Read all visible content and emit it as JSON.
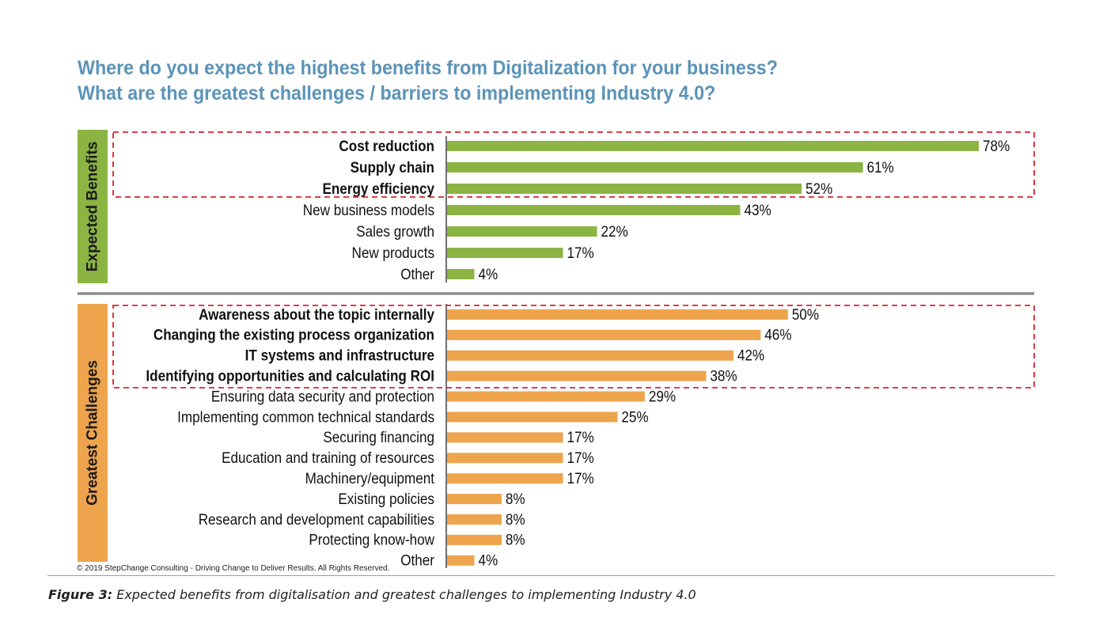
{
  "header": {
    "title_line1": "Where do you expect the highest benefits from Digitalization for your business?",
    "title_line2": "What are the greatest challenges / barriers to implementing Industry 4.0?"
  },
  "footer": {
    "copyright": "© 2019 StepChange Consulting - Driving Change to Deliver Results. All Rights Reserved.",
    "caption_label": "Figure 3:",
    "caption_text": "Expected benefits from digitalisation and greatest challenges to implementing Industry 4.0"
  },
  "colors": {
    "benefits": "#8bb443",
    "challenges": "#eda44c",
    "highlight_box": "#d9232e",
    "title": "#5b93b8",
    "divider": "#8c8c8c"
  },
  "chart_data": [
    {
      "type": "bar",
      "orientation": "horizontal",
      "group_label": "Expected Benefits",
      "categories": [
        "Cost reduction",
        "Supply chain",
        "Energy efficiency",
        "New business models",
        "Sales growth",
        "New products",
        "Other"
      ],
      "values": [
        78,
        61,
        52,
        43,
        22,
        17,
        4
      ],
      "value_labels": [
        "78%",
        "61%",
        "52%",
        "43%",
        "22%",
        "17%",
        "4%"
      ],
      "highlighted": [
        0,
        1,
        2
      ],
      "unit": "%",
      "xlim": [
        0,
        80
      ]
    },
    {
      "type": "bar",
      "orientation": "horizontal",
      "group_label": "Greatest Challenges",
      "categories": [
        "Awareness about the topic internally",
        "Changing the existing process organization",
        "IT systems and infrastructure",
        "Identifying opportunities and calculating ROI",
        "Ensuring data security and protection",
        "Implementing common technical standards",
        "Securing financing",
        "Education and training of resources",
        "Machinery/equipment",
        "Existing policies",
        "Research and development capabilities",
        "Protecting know-how",
        "Other"
      ],
      "values": [
        50,
        46,
        42,
        38,
        29,
        25,
        17,
        17,
        17,
        8,
        8,
        8,
        4
      ],
      "value_labels": [
        "50%",
        "46%",
        "42%",
        "38%",
        "29%",
        "25%",
        "17%",
        "17%",
        "17%",
        "8%",
        "8%",
        "8%",
        "4%"
      ],
      "highlighted": [
        0,
        1,
        2,
        3
      ],
      "unit": "%",
      "xlim": [
        0,
        80
      ]
    }
  ]
}
